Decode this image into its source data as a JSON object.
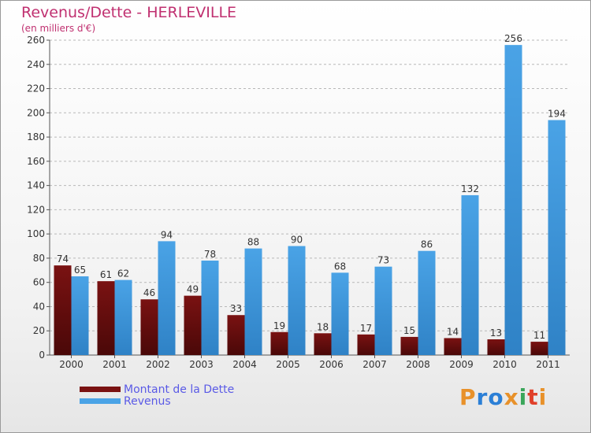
{
  "title": "Revenus/Dette - HERLEVILLE",
  "subtitle": "(en milliers d'€)",
  "logo_text": "Proxiti",
  "colors": {
    "title": "#c03070",
    "legend_text": "#5a5ae6",
    "dette": "#7a1212",
    "revenus": "#4aa3e6",
    "grid": "#b8b8b8"
  },
  "chart_data": {
    "type": "bar",
    "categories": [
      "2000",
      "2001",
      "2002",
      "2003",
      "2004",
      "2005",
      "2006",
      "2007",
      "2008",
      "2009",
      "2010",
      "2011"
    ],
    "series": [
      {
        "name": "Montant de la Dette",
        "values": [
          74,
          61,
          46,
          49,
          33,
          19,
          18,
          17,
          15,
          14,
          13,
          11
        ]
      },
      {
        "name": "Revenus",
        "values": [
          65,
          62,
          94,
          78,
          88,
          90,
          68,
          73,
          86,
          132,
          256,
          194
        ]
      }
    ],
    "title": "Revenus/Dette - HERLEVILLE",
    "ylabel": "(en milliers d'€)",
    "ylim": [
      0,
      260
    ],
    "yticks": [
      0,
      20,
      40,
      60,
      80,
      100,
      120,
      140,
      160,
      180,
      200,
      220,
      240,
      260
    ],
    "grid": true,
    "legend_position": "bottom-left"
  }
}
